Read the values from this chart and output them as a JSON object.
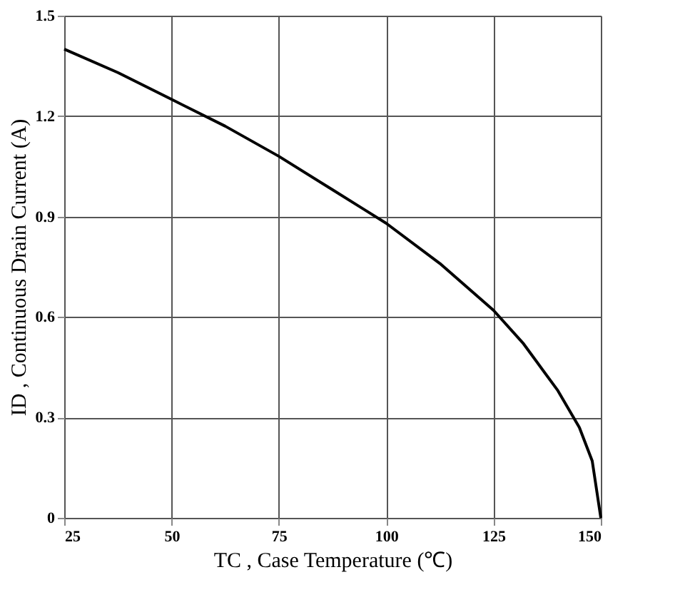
{
  "chart_data": {
    "type": "line",
    "xlabel": "TC , Case Temperature (℃)",
    "ylabel": "ID , Continuous Drain Current (A)",
    "x": [
      25,
      37.5,
      50,
      62.5,
      75,
      87.5,
      100,
      112.5,
      125,
      132,
      140,
      145,
      148,
      150
    ],
    "series": [
      {
        "color": "#000000",
        "values": [
          1.4,
          1.33,
          1.25,
          1.17,
          1.08,
          0.98,
          0.88,
          0.76,
          0.62,
          0.52,
          0.38,
          0.27,
          0.17,
          0
        ]
      }
    ],
    "xlim": [
      25,
      150
    ],
    "xticks": [
      25,
      50,
      75,
      100,
      125,
      150
    ],
    "ylim": [
      0,
      1.5
    ],
    "yticks": [
      0,
      0.3,
      0.6,
      0.9,
      1.2,
      1.5
    ],
    "grid": true,
    "marker": "none",
    "line_style": "solid"
  }
}
